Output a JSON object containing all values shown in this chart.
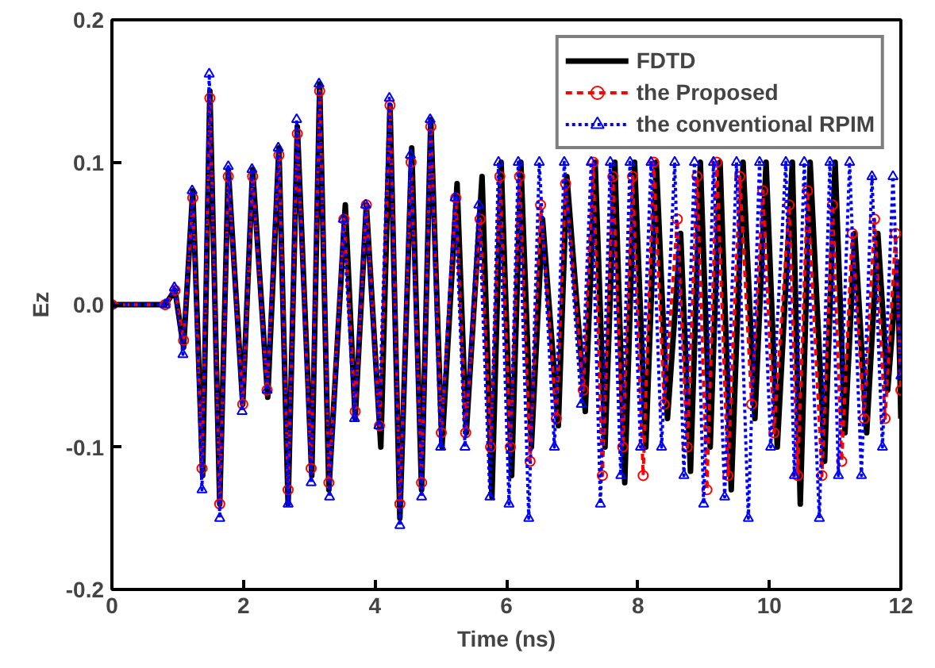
{
  "chart_data": {
    "type": "line",
    "xlabel": "Time (ns)",
    "ylabel": "Ez",
    "xlim": [
      0,
      12
    ],
    "xticks": [
      0,
      2,
      4,
      6,
      8,
      10,
      12
    ],
    "ylim": [
      -0.2,
      0.2
    ],
    "yticks": [
      {
        "value": -0.2,
        "label": "-0.2"
      },
      {
        "value": -0.1,
        "label": "-0.1"
      },
      {
        "value": 0,
        "label": "0.0"
      },
      {
        "value": 0.1,
        "label": "0.1"
      },
      {
        "value": 0.2,
        "label": "0.2"
      }
    ],
    "grid": false,
    "legend": "top right",
    "series": [
      {
        "name": "FDTD",
        "color": "#000000",
        "line_style": "solid",
        "marker": "none",
        "x": [
          0,
          0.81,
          0.96,
          1.09,
          1.23,
          1.38,
          1.49,
          1.64,
          1.77,
          1.99,
          2.14,
          2.37,
          2.54,
          2.68,
          2.82,
          3.04,
          3.16,
          3.3,
          3.55,
          3.7,
          3.87,
          4.09,
          4.23,
          4.38,
          4.56,
          4.71,
          4.85,
          5.02,
          5.25,
          5.39,
          5.63,
          5.78,
          5.92,
          6.08,
          6.22,
          6.38,
          6.55,
          6.79,
          6.92,
          7.2,
          7.35,
          7.5,
          7.65,
          7.8,
          7.95,
          8.12,
          8.28,
          8.45,
          8.65,
          8.8,
          8.95,
          9.1,
          9.25,
          9.42,
          9.6,
          9.78,
          9.95,
          10.12,
          10.35,
          10.47,
          10.62,
          10.84,
          11.0,
          11.15,
          11.3,
          11.48,
          11.65,
          11.8,
          11.95,
          12
        ],
        "values": [
          0,
          0,
          0.01,
          -0.03,
          0.08,
          -0.12,
          0.15,
          -0.14,
          0.095,
          -0.07,
          0.095,
          -0.065,
          0.11,
          -0.14,
          0.125,
          -0.12,
          0.155,
          -0.13,
          0.07,
          -0.08,
          0.07,
          -0.1,
          0.14,
          -0.15,
          0.11,
          -0.13,
          0.13,
          -0.1,
          0.085,
          -0.09,
          0.09,
          -0.135,
          0.1,
          -0.12,
          0.1,
          -0.1,
          0.06,
          -0.085,
          0.09,
          -0.075,
          0.1,
          -0.1,
          0.1,
          -0.125,
          0.1,
          -0.1,
          0.1,
          -0.08,
          0.05,
          -0.117,
          0.1,
          -0.1,
          0.1,
          -0.13,
          0.1,
          -0.08,
          0.1,
          -0.1,
          0.1,
          -0.14,
          0.1,
          -0.11,
          0.1,
          -0.09,
          0.05,
          -0.09,
          0.05,
          -0.06,
          0.03,
          -0.08
        ]
      },
      {
        "name": "the Proposed",
        "color": "#ff0000",
        "line_style": "dashed",
        "marker": "circle",
        "x": [
          0,
          0.81,
          0.96,
          1.09,
          1.23,
          1.37,
          1.49,
          1.64,
          1.77,
          1.99,
          2.14,
          2.36,
          2.54,
          2.68,
          2.82,
          3.03,
          3.16,
          3.3,
          3.53,
          3.7,
          3.87,
          4.07,
          4.23,
          4.38,
          4.55,
          4.71,
          4.85,
          5.01,
          5.23,
          5.38,
          5.6,
          5.76,
          5.9,
          6.06,
          6.2,
          6.36,
          6.52,
          6.76,
          6.9,
          7.17,
          7.32,
          7.46,
          7.62,
          7.77,
          7.92,
          8.08,
          8.24,
          8.4,
          8.6,
          8.75,
          8.9,
          9.05,
          9.2,
          9.37,
          9.55,
          9.73,
          9.9,
          10.07,
          10.3,
          10.43,
          10.58,
          10.8,
          10.96,
          11.1,
          11.26,
          11.44,
          11.6,
          11.76,
          11.92,
          12
        ],
        "values": [
          0,
          0,
          0.01,
          -0.025,
          0.075,
          -0.115,
          0.145,
          -0.14,
          0.09,
          -0.07,
          0.09,
          -0.06,
          0.105,
          -0.13,
          0.12,
          -0.115,
          0.15,
          -0.125,
          0.06,
          -0.075,
          0.07,
          -0.085,
          0.14,
          -0.14,
          0.1,
          -0.125,
          0.125,
          -0.09,
          0.075,
          -0.09,
          0.06,
          -0.1,
          0.09,
          -0.1,
          0.09,
          -0.11,
          0.07,
          -0.08,
          0.085,
          -0.06,
          0.1,
          -0.12,
          0.09,
          -0.1,
          0.09,
          -0.12,
          0.1,
          -0.07,
          0.06,
          -0.1,
          0.09,
          -0.13,
          0.1,
          -0.12,
          0.09,
          -0.07,
          0.08,
          -0.09,
          0.07,
          -0.12,
          0.08,
          -0.12,
          0.07,
          -0.11,
          0.05,
          -0.08,
          0.06,
          -0.08,
          0.05,
          -0.06
        ]
      },
      {
        "name": "the conventional RPIM",
        "color": "#0000ff",
        "line_style": "dotted",
        "marker": "triangle",
        "x": [
          0,
          0.81,
          0.95,
          1.08,
          1.22,
          1.37,
          1.48,
          1.64,
          1.77,
          1.98,
          2.13,
          2.36,
          2.53,
          2.68,
          2.81,
          3.03,
          3.15,
          3.31,
          3.52,
          3.69,
          3.86,
          4.06,
          4.22,
          4.38,
          4.54,
          4.71,
          4.84,
          5.0,
          5.22,
          5.37,
          5.58,
          5.75,
          5.88,
          6.04,
          6.18,
          6.34,
          6.5,
          6.73,
          6.88,
          7.14,
          7.29,
          7.43,
          7.58,
          7.74,
          7.88,
          8.04,
          8.2,
          8.36,
          8.56,
          8.7,
          8.86,
          9.0,
          9.15,
          9.32,
          9.5,
          9.68,
          9.85,
          10.02,
          10.25,
          10.38,
          10.53,
          10.76,
          10.92,
          11.05,
          11.22,
          11.4,
          11.56,
          11.72,
          11.88,
          12
        ],
        "values": [
          0,
          0,
          0.012,
          -0.035,
          0.08,
          -0.13,
          0.162,
          -0.15,
          0.097,
          -0.075,
          0.095,
          -0.06,
          0.11,
          -0.14,
          0.13,
          -0.125,
          0.155,
          -0.135,
          0.06,
          -0.08,
          0.07,
          -0.085,
          0.145,
          -0.155,
          0.105,
          -0.135,
          0.13,
          -0.1,
          0.075,
          -0.1,
          0.07,
          -0.135,
          0.1,
          -0.14,
          0.1,
          -0.15,
          0.1,
          -0.1,
          0.1,
          -0.07,
          0.1,
          -0.14,
          0.1,
          -0.12,
          0.1,
          -0.1,
          0.1,
          -0.1,
          0.1,
          -0.12,
          0.1,
          -0.14,
          0.1,
          -0.135,
          0.1,
          -0.15,
          0.1,
          -0.1,
          0.1,
          -0.12,
          0.1,
          -0.15,
          0.1,
          -0.12,
          0.1,
          -0.12,
          0.09,
          -0.1,
          0.09,
          -0.05
        ]
      }
    ]
  }
}
